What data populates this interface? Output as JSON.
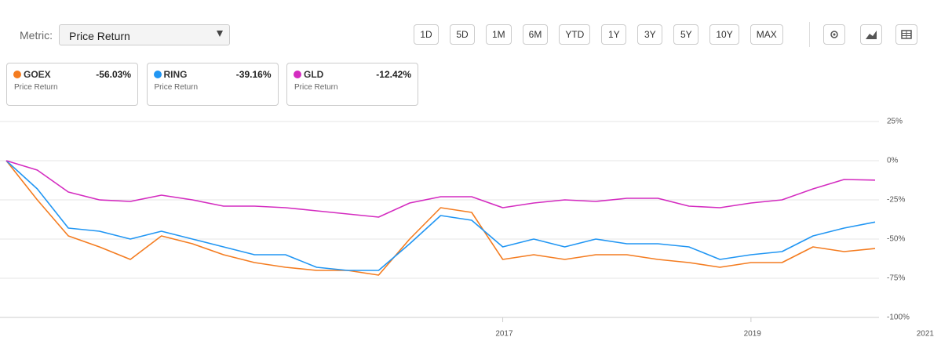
{
  "controls": {
    "metric_label": "Metric:",
    "metric": "Price Return",
    "ranges": [
      "1D",
      "5D",
      "1M",
      "6M",
      "YTD",
      "1Y",
      "3Y",
      "5Y",
      "10Y",
      "MAX"
    ]
  },
  "chart_data": {
    "type": "line",
    "x": [
      2013,
      2013.25,
      2013.5,
      2013.75,
      2014,
      2014.25,
      2014.5,
      2014.75,
      2015,
      2015.25,
      2015.5,
      2015.75,
      2016,
      2016.25,
      2016.5,
      2016.75,
      2017,
      2017.25,
      2017.5,
      2017.75,
      2018,
      2018.25,
      2018.5,
      2018.75,
      2019,
      2019.25,
      2019.5,
      2019.75,
      2020
    ],
    "xlim": [
      2013,
      2020
    ],
    "xticks": [
      2017,
      2019,
      2021
    ],
    "ylim": [
      -100,
      25
    ],
    "yticks": [
      {
        "value": 25,
        "label": "25%"
      },
      {
        "value": 0,
        "label": "0%"
      },
      {
        "value": -25,
        "label": "-25%"
      },
      {
        "value": -50,
        "label": "-50%"
      },
      {
        "value": -75,
        "label": "-75%"
      },
      {
        "value": -100,
        "label": "-100%"
      }
    ],
    "grid": true,
    "series": [
      {
        "name": "GOEX",
        "color": "#f47c20",
        "change": "-56.03%",
        "metric": "Price Return",
        "values": [
          0,
          -25,
          -48,
          -55,
          -63,
          -48,
          -53,
          -60,
          -65,
          -68,
          -70,
          -70,
          -73,
          -50,
          -30,
          -33,
          -63,
          -60,
          -63,
          -60,
          -60,
          -63,
          -65,
          -68,
          -65,
          -65,
          -55,
          -58,
          -56.03
        ]
      },
      {
        "name": "RING",
        "color": "#2196f3",
        "change": "-39.16%",
        "metric": "Price Return",
        "values": [
          0,
          -18,
          -43,
          -45,
          -50,
          -45,
          -50,
          -55,
          -60,
          -60,
          -68,
          -70,
          -70,
          -53,
          -35,
          -38,
          -55,
          -50,
          -55,
          -50,
          -53,
          -53,
          -55,
          -63,
          -60,
          -58,
          -48,
          -43,
          -39.16
        ]
      },
      {
        "name": "GLD",
        "color": "#d42cc0",
        "change": "-12.42%",
        "metric": "Price Return",
        "values": [
          0,
          -6,
          -20,
          -25,
          -26,
          -22,
          -25,
          -29,
          -29,
          -30,
          -32,
          -34,
          -36,
          -27,
          -23,
          -23,
          -30,
          -27,
          -25,
          -26,
          -24,
          -24,
          -29,
          -30,
          -27,
          -25,
          -18,
          -12,
          -12.42
        ]
      }
    ]
  }
}
